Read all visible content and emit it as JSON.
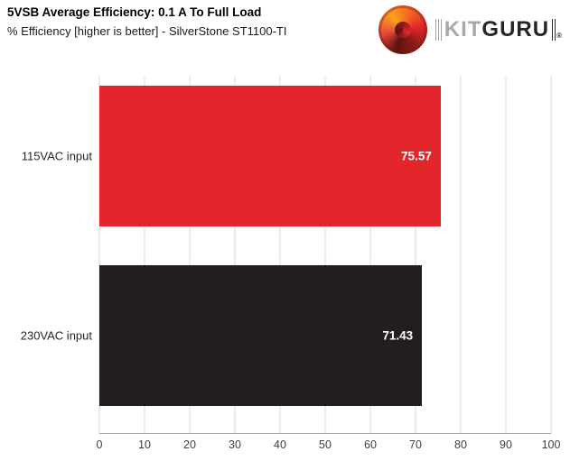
{
  "header": {
    "title": "5VSB Average Efficiency: 0.1 A To Full Load",
    "subtitle": "% Efficiency [higher is better] - SilverStone ST1100-TI"
  },
  "logo": {
    "kit": "KIT",
    "guru": "GURU",
    "registered": "®",
    "icon": "kitguru-swirl-icon"
  },
  "chart_data": {
    "type": "bar",
    "orientation": "horizontal",
    "title": "5VSB Average Efficiency: 0.1 A To Full Load",
    "subtitle": "% Efficiency [higher is better] - SilverStone ST1100-TI",
    "categories": [
      "115VAC input",
      "230VAC input"
    ],
    "values": [
      75.57,
      71.43
    ],
    "value_labels": [
      "75.57",
      "71.43"
    ],
    "bar_colors": [
      "#e2262c",
      "#221e1f"
    ],
    "value_label_color": "#ffffff",
    "xlim": [
      0,
      100
    ],
    "xticks": [
      0,
      10,
      20,
      30,
      40,
      50,
      60,
      70,
      80,
      90,
      100
    ],
    "grid": true,
    "legend": "none"
  }
}
